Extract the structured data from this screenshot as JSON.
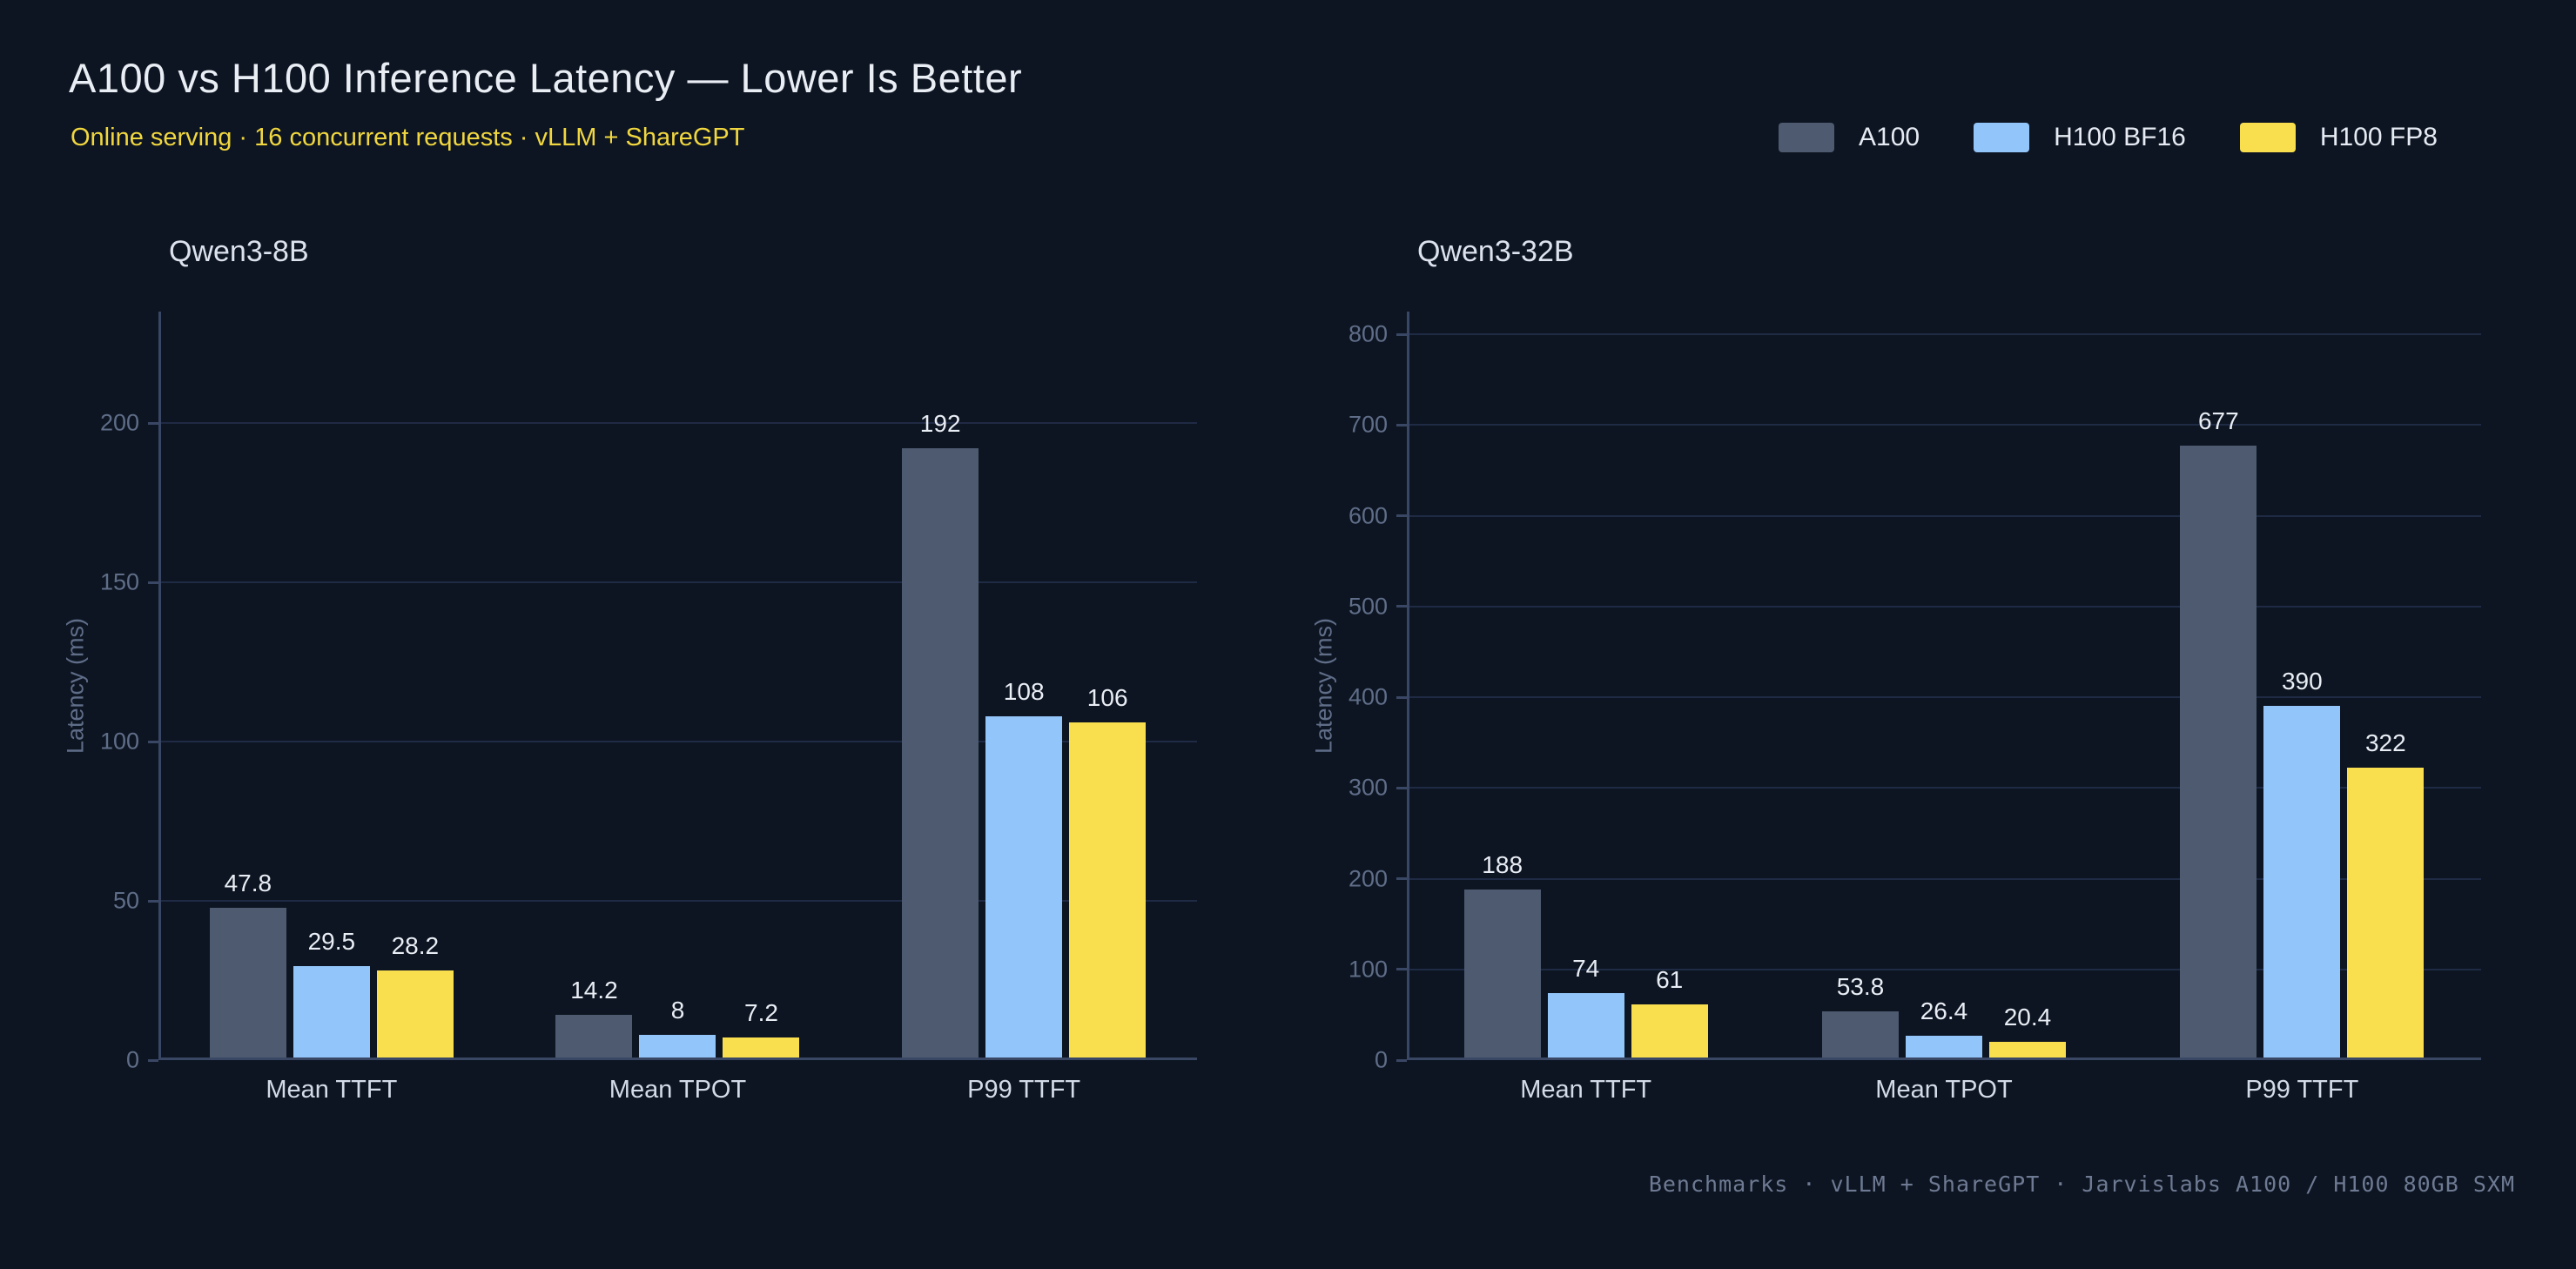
{
  "title": "A100 vs H100 Inference Latency — Lower Is Better",
  "subtitle": "Online serving · 16 concurrent requests · vLLM + ShareGPT",
  "legend": [
    {
      "label": "A100",
      "color": "#4d5a70"
    },
    {
      "label": "H100 BF16",
      "color": "#92c5f9"
    },
    {
      "label": "H100 FP8",
      "color": "#f9df4e"
    }
  ],
  "footer": "Benchmarks · vLLM + ShareGPT · Jarvislabs A100 / H100 80GB SXM",
  "colors": {
    "background": "#0d1522",
    "title_text": "#e9edf4",
    "subtitle_text": "#f1d73f",
    "panel_title_text": "#dde3ee",
    "axis_line": "#3a4764",
    "gridline": "#1f2a44",
    "tick_label": "#5f6d88",
    "value_label": "#e9edf4",
    "category_label": "#d4dbe8",
    "footer_text": "#6e7a93"
  },
  "chart_data": [
    {
      "type": "bar",
      "title": "Qwen3-8B",
      "xlabel": "",
      "ylabel": "Latency (ms)",
      "categories": [
        "Mean TTFT",
        "Mean TPOT",
        "P99 TTFT"
      ],
      "series": [
        {
          "name": "A100",
          "values": [
            47.8,
            14.2,
            192
          ]
        },
        {
          "name": "H100 BF16",
          "values": [
            29.5,
            8,
            108
          ]
        },
        {
          "name": "H100 FP8",
          "values": [
            28.2,
            7.2,
            106
          ]
        }
      ],
      "yticks": [
        0,
        50,
        100,
        150,
        200
      ],
      "ylim": [
        0,
        235
      ],
      "grid": true,
      "value_labels": true,
      "legend_position": "top-right"
    },
    {
      "type": "bar",
      "title": "Qwen3-32B",
      "xlabel": "",
      "ylabel": "Latency (ms)",
      "categories": [
        "Mean TTFT",
        "Mean TPOT",
        "P99 TTFT"
      ],
      "series": [
        {
          "name": "A100",
          "values": [
            188,
            53.8,
            677
          ]
        },
        {
          "name": "H100 BF16",
          "values": [
            74,
            26.4,
            390
          ]
        },
        {
          "name": "H100 FP8",
          "values": [
            61,
            20.4,
            322
          ]
        }
      ],
      "yticks": [
        0,
        100,
        200,
        300,
        400,
        500,
        600,
        700,
        800
      ],
      "ylim": [
        0,
        825
      ],
      "grid": true,
      "value_labels": true,
      "legend_position": "top-right"
    }
  ]
}
